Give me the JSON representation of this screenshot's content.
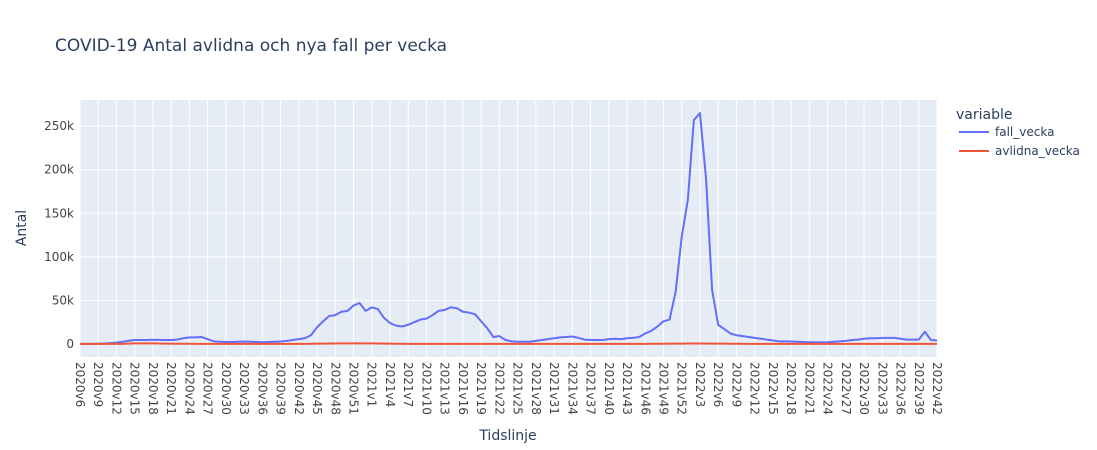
{
  "chart_data": {
    "type": "line",
    "title": "COVID-19 Antal avlidna och nya fall per vecka",
    "xlabel": "Tidslinje",
    "ylabel": "Antal",
    "legend_title": "variable",
    "categories": [
      "2020v6",
      null,
      null,
      "2020v9",
      null,
      null,
      "2020v12",
      null,
      null,
      "2020v15",
      null,
      null,
      "2020v18",
      null,
      null,
      "2020v21",
      null,
      null,
      "2020v24",
      null,
      null,
      "2020v27",
      null,
      null,
      "2020v30",
      null,
      null,
      "2020v33",
      null,
      null,
      "2020v36",
      null,
      null,
      "2020v39",
      null,
      null,
      "2020v42",
      null,
      null,
      "2020v45",
      null,
      null,
      "2020v48",
      null,
      null,
      "2020v51",
      null,
      null,
      "2021v1",
      null,
      null,
      "2021v4",
      null,
      null,
      "2021v7",
      null,
      null,
      "2021v10",
      null,
      null,
      "2021v13",
      null,
      null,
      "2021v16",
      null,
      null,
      "2021v19",
      null,
      null,
      "2021v22",
      null,
      null,
      "2021v25",
      null,
      null,
      "2021v28",
      null,
      null,
      "2021v31",
      null,
      null,
      "2021v34",
      null,
      null,
      "2021v37",
      null,
      null,
      "2021v40",
      null,
      null,
      "2021v43",
      null,
      null,
      "2021v46",
      null,
      null,
      "2021v49",
      null,
      null,
      "2021v52",
      null,
      null,
      "2022v3",
      null,
      null,
      "2022v6",
      null,
      null,
      "2022v9",
      null,
      null,
      "2022v12",
      null,
      null,
      "2022v15",
      null,
      null,
      "2022v18",
      null,
      null,
      "2022v21",
      null,
      null,
      "2022v24",
      null,
      null,
      "2022v27",
      null,
      null,
      "2022v30",
      null,
      null,
      "2022v33",
      null,
      null,
      "2022v36",
      null,
      null,
      "2022v39",
      null,
      null,
      "2022v42"
    ],
    "series": [
      {
        "name": "fall_vecka",
        "color": "#636efa",
        "values": [
          0,
          0,
          0,
          200,
          500,
          1000,
          1500,
          2500,
          3500,
          4500,
          4500,
          4500,
          4800,
          4600,
          4500,
          4500,
          5000,
          6500,
          7500,
          7500,
          8000,
          5500,
          3000,
          2500,
          2200,
          2200,
          2500,
          2800,
          2500,
          2200,
          2000,
          2200,
          2500,
          2800,
          3500,
          4500,
          5500,
          6500,
          10000,
          19000,
          26000,
          32000,
          33000,
          37000,
          38000,
          44000,
          47000,
          38000,
          42000,
          40000,
          30000,
          24000,
          21000,
          20000,
          22000,
          25000,
          28000,
          29000,
          33000,
          38000,
          39000,
          42000,
          41000,
          37000,
          36000,
          34000,
          26000,
          18000,
          8000,
          9000,
          4500,
          3000,
          2500,
          2500,
          2500,
          3500,
          4500,
          5500,
          6500,
          7500,
          8000,
          8500,
          7000,
          5000,
          4500,
          4500,
          4500,
          5500,
          6000,
          5500,
          6500,
          7000,
          8000,
          12000,
          15000,
          20000,
          26000,
          28000,
          60000,
          123000,
          165000,
          257000,
          265000,
          190000,
          62000,
          22000,
          17000,
          12000,
          10000,
          9000,
          8000,
          7000,
          6000,
          5000,
          4000,
          3000,
          3000,
          2800,
          2500,
          2200,
          2000,
          2000,
          1800,
          2000,
          2500,
          3000,
          3500,
          4500,
          5000,
          6000,
          6500,
          6500,
          7000,
          7000,
          7000,
          6000,
          5000,
          5000,
          5000,
          14000,
          4500,
          4000
        ]
      },
      {
        "name": "avlidna_vecka",
        "color": "#ef553b",
        "values": [
          0,
          0,
          0,
          0,
          0,
          0,
          10,
          100,
          400,
          600,
          700,
          700,
          600,
          500,
          400,
          300,
          250,
          200,
          150,
          100,
          60,
          40,
          20,
          15,
          15,
          15,
          15,
          15,
          15,
          15,
          15,
          15,
          15,
          15,
          20,
          30,
          50,
          100,
          200,
          300,
          400,
          500,
          550,
          600,
          650,
          700,
          700,
          650,
          600,
          500,
          400,
          300,
          200,
          150,
          120,
          100,
          100,
          100,
          100,
          110,
          120,
          120,
          110,
          100,
          90,
          70,
          50,
          40,
          30,
          20,
          15,
          10,
          10,
          10,
          10,
          10,
          10,
          10,
          15,
          15,
          20,
          20,
          20,
          20,
          20,
          20,
          20,
          30,
          40,
          50,
          60,
          80,
          100,
          120,
          150,
          200,
          250,
          300,
          350,
          400,
          450,
          500,
          500,
          450,
          400,
          350,
          300,
          250,
          200,
          150,
          120,
          100,
          80,
          70,
          60,
          50,
          50,
          50,
          50,
          50,
          50,
          50,
          50,
          50,
          50,
          60,
          60,
          70,
          70,
          80,
          80,
          80,
          80,
          80,
          70,
          70,
          70,
          70,
          70,
          70,
          60,
          60
        ]
      }
    ],
    "ylim": [
      -15000,
      280000
    ],
    "yticks": [
      0,
      {
        "value": 50000,
        "label": "50k"
      },
      {
        "value": 100000,
        "label": "100k"
      },
      {
        "value": 150000,
        "label": "150k"
      },
      {
        "value": 200000,
        "label": "200k"
      },
      {
        "value": 250000,
        "label": "250k"
      }
    ],
    "grid": true,
    "legend": "right"
  }
}
